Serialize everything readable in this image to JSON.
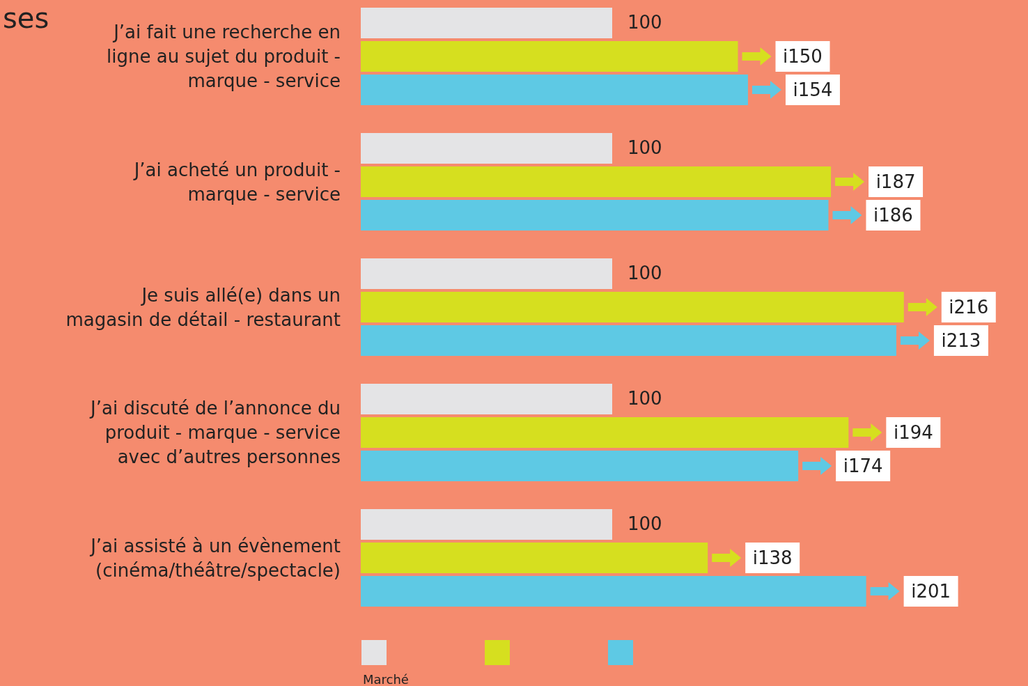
{
  "chart_data": {
    "type": "bar",
    "orientation": "horizontal",
    "title": "ses",
    "categories": [
      "J’ai fait une recherche en ligne au sujet du produit - marque - service",
      "J’ai acheté un produit - marque - service",
      "Je suis allé(e) dans un magasin de détail - restaurant",
      "J’ai discuté de l’annonce du produit - marque - service avec d’autres personnes",
      "J’ai assisté à un évènement (cinéma/théâtre/spectacle)"
    ],
    "series": [
      {
        "name": "Marché",
        "color": "#e4e4e6",
        "values": [
          100,
          100,
          100,
          100,
          100
        ],
        "value_labels": [
          "100",
          "100",
          "100",
          "100",
          "100"
        ]
      },
      {
        "color": "#d6df1f",
        "values": [
          150,
          187,
          216,
          194,
          138
        ],
        "value_labels": [
          "i150",
          "i187",
          "i216",
          "i194",
          "i138"
        ]
      },
      {
        "color": "#5ec9e4",
        "values": [
          154,
          186,
          213,
          174,
          201
        ],
        "value_labels": [
          "i154",
          "i186",
          "i213",
          "i174",
          "i201"
        ]
      }
    ],
    "legend": "bottom"
  }
}
